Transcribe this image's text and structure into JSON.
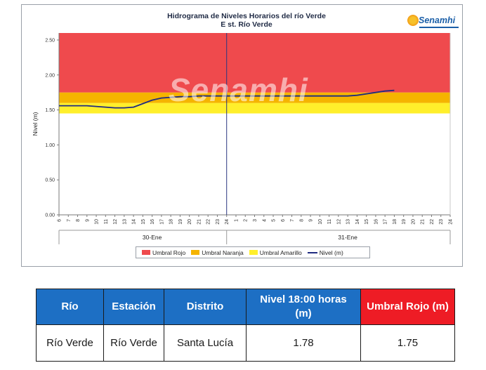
{
  "chart": {
    "title": "Hidrograma de Niveles Horarios del río Verde",
    "subtitle": "E st. Río Verde",
    "logo_text": "Senamhi",
    "watermark": "Senamhi",
    "colors": {
      "umbral_rojo": "#ef4a4d",
      "umbral_naranja": "#f5b400",
      "umbral_amarillo": "#ffef2b",
      "nivel": "#1f2b80"
    }
  },
  "chart_data": {
    "type": "line",
    "title": "Hidrograma de Niveles Horarios del río Verde",
    "subtitle": "E st. Río Verde",
    "xlabel": "",
    "ylabel": "Nivel (m)",
    "ylim": [
      0,
      2.6
    ],
    "yticks": [
      "0.00",
      "0.50",
      "1.00",
      "1.50",
      "2.00",
      "2.50"
    ],
    "x_hour_labels": [
      "6",
      "7",
      "8",
      "9",
      "10",
      "11",
      "12",
      "13",
      "14",
      "15",
      "16",
      "17",
      "18",
      "19",
      "20",
      "21",
      "22",
      "23",
      "24",
      "1",
      "2",
      "3",
      "4",
      "5",
      "6",
      "7",
      "8",
      "9",
      "10",
      "11",
      "12",
      "13",
      "14",
      "15",
      "16",
      "17",
      "18",
      "19",
      "20",
      "21",
      "22",
      "23",
      "24"
    ],
    "day_labels": [
      {
        "label": "30-Ene",
        "center_hour_index": 10
      },
      {
        "label": "31-Ene",
        "center_hour_index": 31
      }
    ],
    "day_divider_hour_index": 18,
    "bands": [
      {
        "name": "Umbral Amarillo",
        "from": 1.45,
        "to": 1.6,
        "color": "#ffef2b"
      },
      {
        "name": "Umbral Naranja",
        "from": 1.6,
        "to": 1.75,
        "color": "#f5b400"
      },
      {
        "name": "Umbral Rojo",
        "from": 1.75,
        "to": 2.6,
        "color": "#ef4a4d"
      }
    ],
    "series": [
      {
        "name": "Nivel (m)",
        "color": "#1f2b80",
        "values": [
          1.56,
          1.56,
          1.56,
          1.56,
          1.55,
          1.54,
          1.53,
          1.53,
          1.54,
          1.59,
          1.64,
          1.67,
          1.68,
          1.69,
          1.69,
          1.7,
          1.7,
          1.7,
          1.7,
          1.7,
          1.7,
          1.7,
          1.7,
          1.7,
          1.7,
          1.7,
          1.7,
          1.7,
          1.7,
          1.7,
          1.7,
          1.7,
          1.71,
          1.73,
          1.75,
          1.77,
          1.78
        ]
      }
    ],
    "legend": [
      "Umbral Rojo",
      "Umbral Naranja",
      "Umbral Amarillo",
      "Nivel (m)"
    ],
    "legend_position": "bottom",
    "grid": false
  },
  "table": {
    "headers": {
      "rio": "Río",
      "estacion": "Estación",
      "distrito": "Distrito",
      "nivel": "Nivel  18:00 horas (m)",
      "umbral": "Umbral Rojo (m)"
    },
    "row": {
      "rio": "Río Verde",
      "estacion": "Río Verde",
      "distrito": "Santa Lucía",
      "nivel": "1.78",
      "umbral": "1.75"
    }
  }
}
